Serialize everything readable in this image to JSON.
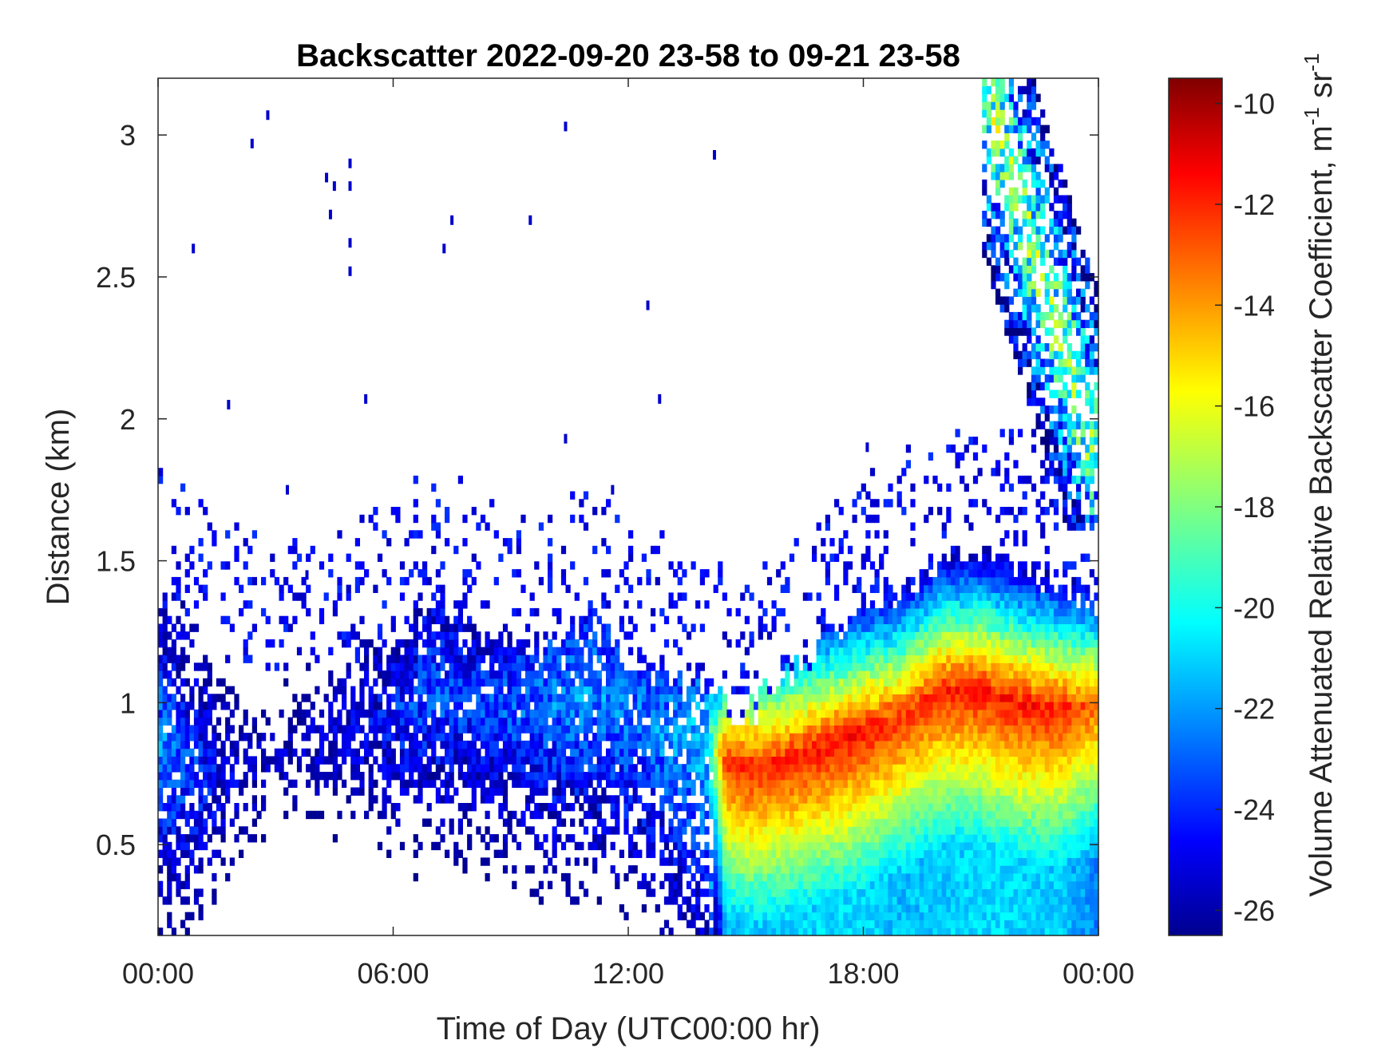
{
  "chart_data": {
    "type": "heatmap",
    "title": "Backscatter 2022-09-20 23-58 to 09-21 23-58",
    "xlabel": "Time of Day (UTC00:00 hr)",
    "ylabel": "Distance (km)",
    "xlim": [
      0,
      24
    ],
    "ylim": [
      0.18,
      3.2
    ],
    "x_ticks": [
      0,
      6,
      12,
      18,
      24
    ],
    "x_tick_labels": [
      "00:00",
      "06:00",
      "12:00",
      "18:00",
      "00:00"
    ],
    "y_ticks": [
      0.5,
      1,
      1.5,
      2,
      2.5,
      3
    ],
    "y_tick_labels": [
      "0.5",
      "1",
      "1.5",
      "2",
      "2.5",
      "3"
    ],
    "grid": false,
    "colorbar": {
      "label_main": "Volume Attenuated Relative Backscatter Coefficient, m",
      "label_sup1": "-1",
      "label_mid": " sr",
      "label_sup2": "-1",
      "range": [
        -26.5,
        -9.5
      ],
      "ticks": [
        -10,
        -12,
        -14,
        -16,
        -18,
        -20,
        -22,
        -24,
        -26
      ],
      "tick_labels": [
        "-10",
        "-12",
        "-14",
        "-16",
        "-18",
        "-20",
        "-22",
        "-24",
        "-26"
      ],
      "colormap": "jet"
    },
    "cloud_profile": {
      "description_units": "x in hours, heights in km, values in coefficient units",
      "x": [
        0,
        1,
        2,
        3,
        4,
        5,
        6,
        7,
        8,
        9,
        10,
        11,
        12,
        13,
        14,
        14.5,
        15,
        16,
        17,
        18,
        19,
        20,
        21,
        22,
        23,
        24
      ],
      "layer_top_km": [
        1.35,
        1.3,
        1.12,
        1.1,
        1.15,
        1.18,
        1.22,
        1.38,
        1.28,
        1.2,
        1.22,
        1.28,
        1.15,
        1.08,
        1.02,
        0.98,
        0.95,
        1.1,
        1.22,
        1.3,
        1.38,
        1.5,
        1.55,
        1.48,
        1.42,
        1.35
      ],
      "peak_height_km": [
        0.85,
        0.75,
        0.72,
        0.8,
        0.85,
        0.9,
        0.95,
        1.05,
        1.0,
        1.0,
        1.0,
        1.05,
        0.95,
        0.9,
        0.85,
        0.8,
        0.78,
        0.8,
        0.85,
        0.9,
        0.95,
        1.05,
        1.05,
        1.0,
        0.98,
        1.0
      ],
      "peak_value": [
        -20.5,
        -22,
        -24,
        -24.5,
        -24,
        -23.5,
        -22.5,
        -21.5,
        -22,
        -21.5,
        -21,
        -20.5,
        -21,
        -20.5,
        -19.5,
        -11.5,
        -11.2,
        -11.2,
        -11,
        -11,
        -11.5,
        -11.2,
        -11,
        -11,
        -11.2,
        -12.5
      ],
      "top_km": 3.2,
      "upper_cloud": {
        "x_start": 21,
        "x_end": 24,
        "top_km": 3.2,
        "base_km": 1.6,
        "peak_value": -15
      }
    },
    "scatter_pixels": {
      "units": "hours, km",
      "points": [
        [
          0.9,
          2.6
        ],
        [
          2.4,
          2.97
        ],
        [
          2.8,
          3.07
        ],
        [
          1.8,
          2.05
        ],
        [
          3.3,
          1.75
        ],
        [
          4.3,
          2.85
        ],
        [
          4.5,
          2.82
        ],
        [
          4.4,
          2.72
        ],
        [
          4.9,
          2.9
        ],
        [
          4.9,
          2.82
        ],
        [
          4.9,
          2.62
        ],
        [
          4.9,
          2.52
        ],
        [
          5.3,
          2.07
        ],
        [
          7.3,
          2.6
        ],
        [
          7.5,
          2.7
        ],
        [
          9.5,
          2.7
        ],
        [
          10.4,
          3.03
        ],
        [
          10.4,
          1.93
        ],
        [
          11.6,
          1.75
        ],
        [
          12.5,
          2.4
        ],
        [
          12.8,
          2.07
        ],
        [
          14.2,
          2.93
        ],
        [
          3.8,
          1.45
        ],
        [
          18.1,
          1.9
        ]
      ]
    }
  }
}
